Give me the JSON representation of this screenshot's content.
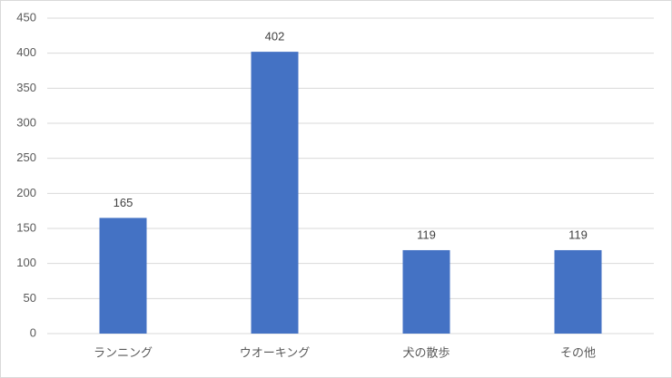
{
  "chart_data": {
    "type": "bar",
    "categories": [
      "ランニング",
      "ウオーキング",
      "犬の散歩",
      "その他"
    ],
    "values": [
      165,
      402,
      119,
      119
    ],
    "color": "#4472c4",
    "ylim": [
      0,
      450
    ],
    "yticks": [
      0,
      50,
      100,
      150,
      200,
      250,
      300,
      350,
      400,
      450
    ],
    "grid": true
  }
}
